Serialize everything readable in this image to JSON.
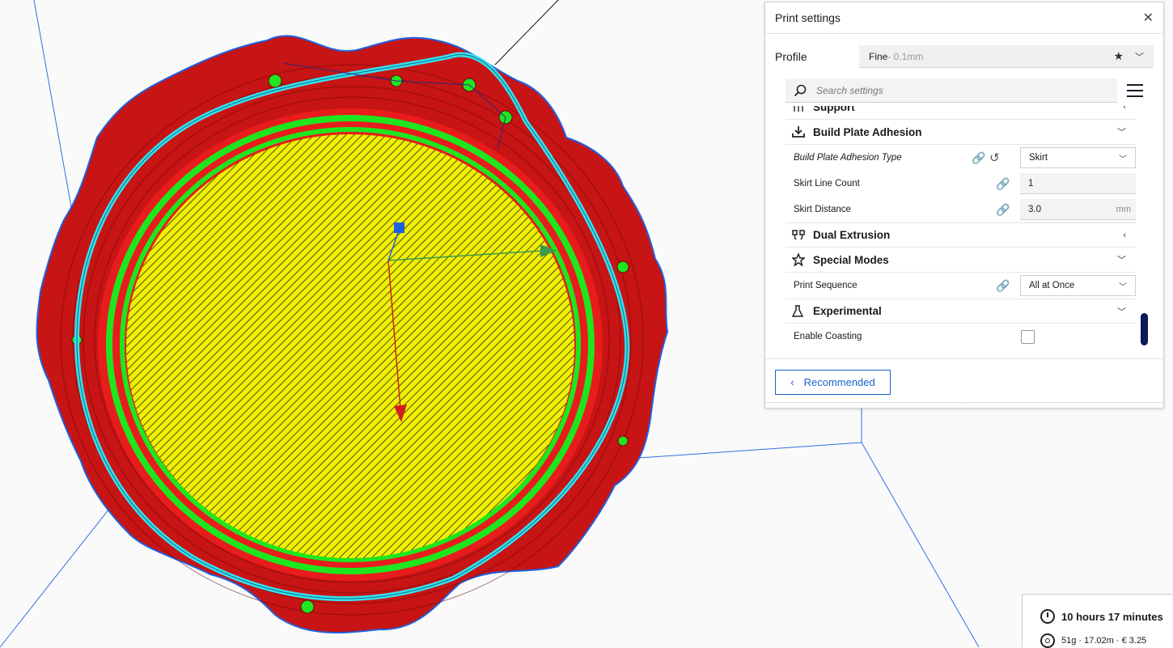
{
  "viewport": {
    "colors": {
      "infill": "#f0f000",
      "wall_outer": "#e81c1c",
      "wall_inner": "#1ee61e",
      "skirt": "#35e0f0",
      "outline": "#2060e0",
      "axis_x": "#3a9a50",
      "axis_y": "#d02020",
      "axis_z": "#2060e0",
      "build_volume_edge": "#3070e0"
    }
  },
  "panel": {
    "title": "Print settings",
    "close_icon": "close-icon",
    "profile": {
      "label": "Profile",
      "value": "Fine",
      "sub": " - 0.1mm"
    },
    "search": {
      "placeholder": "Search settings"
    },
    "categories": {
      "support": {
        "label": "Support",
        "icon": "support-icon"
      },
      "adhesion": {
        "label": "Build Plate Adhesion",
        "icon": "adhesion-icon",
        "settings": {
          "type": {
            "label": "Build Plate Adhesion Type",
            "value": "Skirt"
          },
          "skirt_line_count": {
            "label": "Skirt Line Count",
            "value": "1"
          },
          "skirt_distance": {
            "label": "Skirt Distance",
            "value": "3.0",
            "unit": "mm"
          }
        }
      },
      "dual": {
        "label": "Dual Extrusion",
        "icon": "dual-extrusion-icon"
      },
      "special": {
        "label": "Special Modes",
        "icon": "star-icon",
        "settings": {
          "print_sequence": {
            "label": "Print Sequence",
            "value": "All at Once"
          }
        }
      },
      "experimental": {
        "label": "Experimental",
        "icon": "flask-icon",
        "settings": {
          "enable_coasting": {
            "label": "Enable Coasting",
            "checked": false
          }
        }
      }
    },
    "recommended_label": "Recommended"
  },
  "print_info": {
    "time": "10 hours 17 minutes",
    "material": "51g · 17.02m · € 3.25"
  }
}
